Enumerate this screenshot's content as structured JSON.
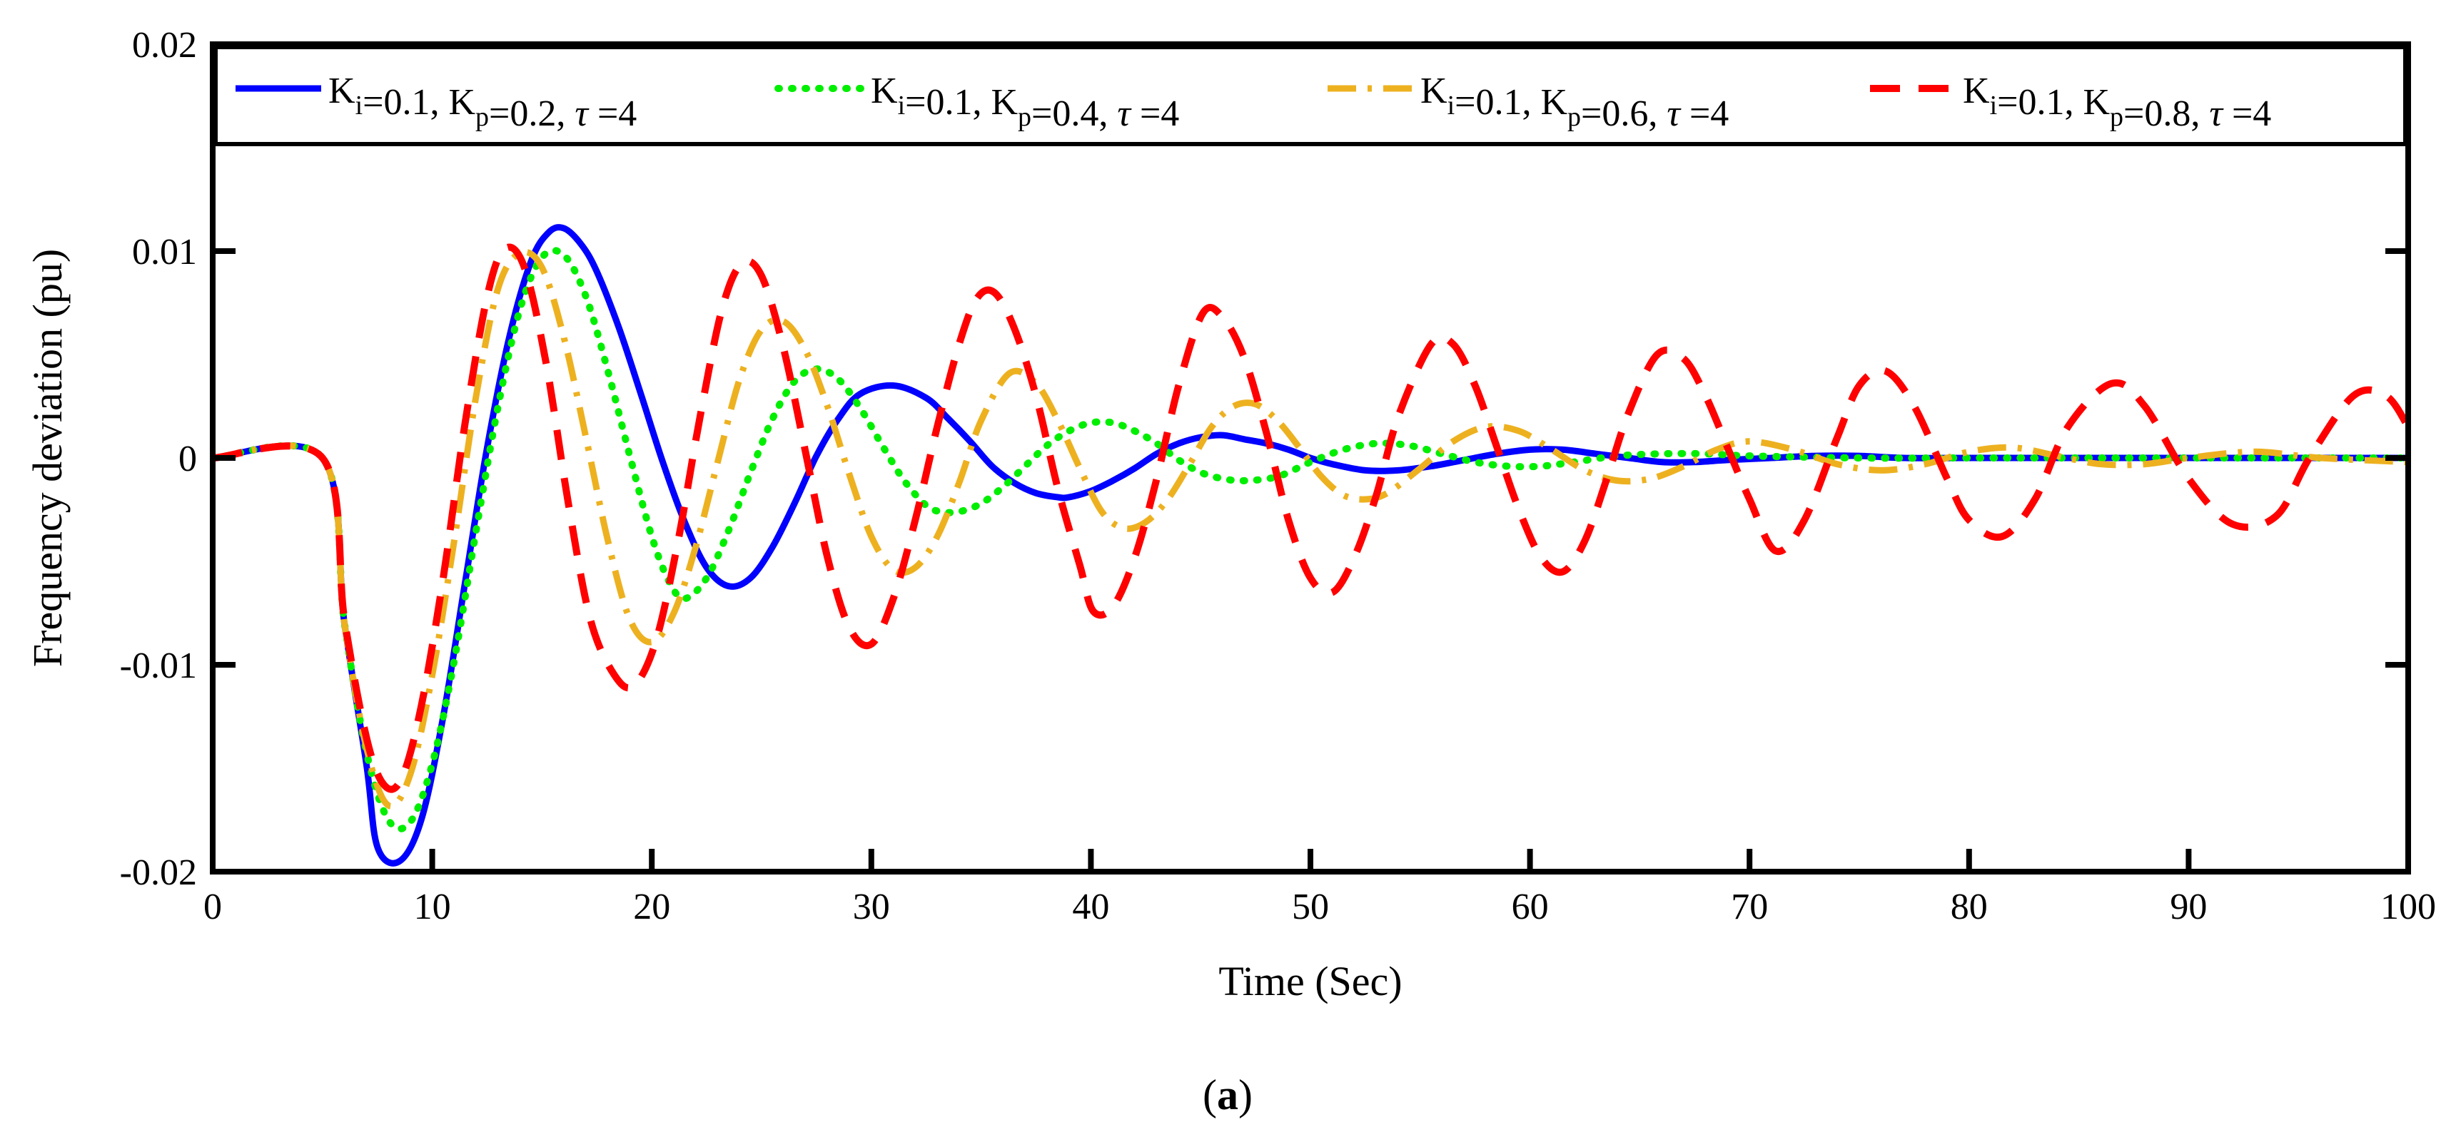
{
  "chart_data": {
    "type": "line",
    "title": "",
    "xlabel": "Time (Sec)",
    "ylabel": "Frequency deviation (pu)",
    "xlim": [
      0,
      100
    ],
    "ylim": [
      -0.02,
      0.02
    ],
    "xticks": [
      0,
      10,
      20,
      30,
      40,
      50,
      60,
      70,
      80,
      90,
      100
    ],
    "xtick_labels": [
      "0",
      "10",
      "20",
      "30",
      "40",
      "50",
      "60",
      "70",
      "80",
      "90",
      "100"
    ],
    "yticks": [
      -0.02,
      -0.01,
      0,
      0.01,
      0.02
    ],
    "ytick_labels": [
      "-0.02",
      "-0.01",
      "0",
      "0.01",
      "0.02"
    ],
    "grid": false,
    "legend_position": "top",
    "caption_open": "(",
    "caption_letter": "a",
    "caption_close": ")",
    "series": [
      {
        "name": "Ki=0.1, Kp=0.2, τ=4",
        "legend": {
          "k1": "K",
          "s1": "i",
          "t1": "=0.1, ",
          "k2": "K",
          "s2": "p",
          "t2": "=0.2, ",
          "tau": "τ",
          "t3": " =4"
        },
        "color": "#0000ff",
        "style": "solid",
        "x": [
          0,
          5,
          6,
          7,
          7.5,
          8.5,
          9.5,
          10.5,
          11.5,
          12.5,
          13.5,
          14.5,
          15.3,
          16,
          16.8,
          17.5,
          18.5,
          19.5,
          20.5,
          21.5,
          22.5,
          23.5,
          24.5,
          25.5,
          26.5,
          27.5,
          28.5,
          29.5,
          31,
          32.5,
          33.5,
          34.5,
          35.5,
          36.5,
          37.5,
          38.5,
          39,
          40,
          41,
          42,
          43,
          44,
          45,
          46,
          47,
          48,
          49,
          50,
          51,
          52.5,
          54,
          55.5,
          57,
          58.5,
          60,
          61.5,
          63,
          64.5,
          66,
          67.5,
          69,
          71,
          73,
          75,
          77,
          80,
          85,
          90,
          95,
          100
        ],
        "y": [
          0,
          0,
          -0.008,
          -0.0148,
          -0.0188,
          -0.0195,
          -0.0175,
          -0.0125,
          -0.006,
          0.0005,
          0.0058,
          0.0095,
          0.0109,
          0.0111,
          0.0103,
          0.009,
          0.0063,
          0.0031,
          -0.0002,
          -0.0031,
          -0.0053,
          -0.0062,
          -0.0058,
          -0.0043,
          -0.0022,
          0.0001,
          0.0019,
          0.0031,
          0.0035,
          0.0029,
          0.0019,
          0.0008,
          -0.0004,
          -0.0012,
          -0.0017,
          -0.0019,
          -0.0019,
          -0.0016,
          -0.0011,
          -0.0005,
          0.0002,
          0.0007,
          0.001,
          0.0011,
          0.0009,
          0.0007,
          0.0004,
          0,
          -0.0003,
          -0.0006,
          -0.0006,
          -0.0004,
          -0.0001,
          0.0002,
          0.0004,
          0.0004,
          0.0002,
          0,
          -0.0002,
          -0.0002,
          -0.0001,
          0,
          0.0001,
          0.0001,
          0,
          0,
          0,
          0,
          0,
          0
        ]
      },
      {
        "name": "Ki=0.1, Kp=0.4, τ=4",
        "legend": {
          "k1": "K",
          "s1": "i",
          "t1": "=0.1, ",
          "k2": "K",
          "s2": "p",
          "t2": "=0.4, ",
          "tau": "τ",
          "t3": " =4"
        },
        "color": "#00ee00",
        "style": "dotted",
        "x": [
          0,
          5,
          6,
          7,
          8,
          9,
          10,
          11,
          12,
          13,
          14,
          15,
          16,
          17,
          18,
          19,
          20,
          20.8,
          21.5,
          22.5,
          23.5,
          24.5,
          25.5,
          26.5,
          27.5,
          28.5,
          29.5,
          30.5,
          31.5,
          32.5,
          33.2,
          34,
          35,
          36,
          37,
          38,
          39,
          40,
          41,
          42,
          43,
          44,
          45,
          46,
          47,
          48.5,
          50,
          51.5,
          53,
          54.5,
          56,
          57.5,
          59,
          60.5,
          62,
          64,
          66,
          68,
          70,
          75,
          80,
          85,
          90,
          95,
          100
        ],
        "y": [
          0,
          0,
          -0.008,
          -0.0142,
          -0.0175,
          -0.0176,
          -0.0148,
          -0.0098,
          -0.0035,
          0.0025,
          0.0072,
          0.0097,
          0.0098,
          0.0078,
          0.0042,
          0.0001,
          -0.0038,
          -0.006,
          -0.0068,
          -0.0058,
          -0.0035,
          -0.0007,
          0.0019,
          0.0037,
          0.0043,
          0.0038,
          0.0024,
          0.0006,
          -0.0011,
          -0.0023,
          -0.0026,
          -0.0026,
          -0.0022,
          -0.0014,
          -0.0004,
          0.0006,
          0.0013,
          0.0017,
          0.0017,
          0.0013,
          0.0007,
          -0.0001,
          -0.0007,
          -0.001,
          -0.0011,
          -0.0009,
          -0.0002,
          0.0004,
          0.0007,
          0.0006,
          0.0002,
          -0.0002,
          -0.0004,
          -0.0004,
          -0.0002,
          0.0001,
          0.0002,
          0.0002,
          0.0001,
          0,
          0,
          0,
          0,
          0,
          0
        ]
      },
      {
        "name": "Ki=0.1, Kp=0.6, τ=4",
        "legend": {
          "k1": "K",
          "s1": "i",
          "t1": "=0.1, ",
          "k2": "K",
          "s2": "p",
          "t2": "=0.6, ",
          "tau": "τ",
          "t3": " =4"
        },
        "color": "#edb120",
        "style": "dashdot",
        "x": [
          0,
          5,
          6,
          7,
          8,
          9,
          10,
          11,
          12,
          13,
          14,
          15,
          16,
          17,
          18,
          19,
          20,
          21,
          22,
          23,
          24,
          25,
          26,
          27,
          28,
          29,
          30,
          31,
          32,
          33,
          34,
          35,
          36.3,
          37.5,
          38.5,
          39.5,
          40.5,
          41.5,
          42.5,
          43.5,
          44.5,
          45.5,
          46.5,
          47.5,
          48.5,
          49.5,
          50.5,
          51.5,
          52.5,
          53.5,
          55,
          56.5,
          58,
          59.5,
          61,
          62.5,
          64,
          65.5,
          67,
          68.5,
          70,
          72,
          74,
          76,
          78,
          80,
          82,
          84,
          86,
          88,
          90,
          93,
          96,
          100
        ],
        "y": [
          0,
          0,
          -0.008,
          -0.014,
          -0.0168,
          -0.0153,
          -0.0105,
          -0.004,
          0.003,
          0.0082,
          0.0099,
          0.0092,
          0.0058,
          0.001,
          -0.004,
          -0.0078,
          -0.0089,
          -0.0075,
          -0.0043,
          -0.0002,
          0.0038,
          0.0062,
          0.0066,
          0.0052,
          0.0025,
          -0.0008,
          -0.0038,
          -0.0054,
          -0.0053,
          -0.0038,
          -0.0012,
          0.0018,
          0.0041,
          0.0036,
          0.0018,
          -0.0005,
          -0.0026,
          -0.0034,
          -0.0031,
          -0.002,
          -0.0003,
          0.0015,
          0.0025,
          0.0026,
          0.0018,
          0.0005,
          -0.0009,
          -0.0018,
          -0.002,
          -0.0017,
          -0.0005,
          0.0008,
          0.0015,
          0.0013,
          0.0004,
          -0.0006,
          -0.0011,
          -0.001,
          -0.0004,
          0.0004,
          0.0008,
          0.0004,
          -0.0003,
          -0.0006,
          -0.0003,
          0.0003,
          0.0005,
          0.0001,
          -0.0003,
          -0.0003,
          0,
          0.0003,
          0,
          -0.0002
        ]
      },
      {
        "name": "Ki=0.1, Kp=0.8, τ=4",
        "legend": {
          "k1": "K",
          "s1": "i",
          "t1": "=0.1, ",
          "k2": "K",
          "s2": "p",
          "t2": "=0.8, ",
          "tau": "τ",
          "t3": " =4"
        },
        "color": "#ff0000",
        "style": "dashed",
        "x": [
          0,
          5,
          6,
          7,
          7.8,
          8.6,
          9.5,
          10.5,
          11.5,
          12.5,
          13.3,
          14.2,
          15.2,
          16.2,
          17.2,
          18.3,
          19.2,
          20.2,
          21.2,
          22.2,
          23.2,
          24.1,
          25,
          26,
          27,
          28,
          29,
          30,
          31,
          32,
          33,
          34,
          34.8,
          35.6,
          36.5,
          37.5,
          38.5,
          39.5,
          40.1,
          41,
          42,
          43,
          44,
          45.1,
          46,
          47,
          48,
          49,
          50,
          51,
          52,
          53,
          54,
          55.5,
          56.5,
          57.5,
          58.5,
          59.5,
          60.5,
          61.5,
          62.5,
          63.5,
          64.5,
          65.8,
          67,
          68,
          69,
          70,
          71.2,
          72.5,
          74,
          75,
          76.2,
          77.5,
          79,
          80,
          81.5,
          83,
          84.5,
          86.5,
          88,
          90,
          92,
          94,
          95.5,
          97.5,
          99,
          100
        ],
        "y": [
          0,
          0,
          -0.0078,
          -0.0135,
          -0.0158,
          -0.0155,
          -0.012,
          -0.0058,
          0.0017,
          0.0078,
          0.0101,
          0.0092,
          0.0045,
          -0.0022,
          -0.0078,
          -0.0105,
          -0.011,
          -0.0088,
          -0.004,
          0.002,
          0.0072,
          0.0094,
          0.0088,
          0.0053,
          0.0003,
          -0.0048,
          -0.0082,
          -0.009,
          -0.0068,
          -0.003,
          0.0015,
          0.0055,
          0.0077,
          0.008,
          0.0063,
          0.003,
          -0.0015,
          -0.0052,
          -0.0074,
          -0.0072,
          -0.0048,
          -0.001,
          0.0035,
          0.007,
          0.0068,
          0.0048,
          0.0012,
          -0.003,
          -0.0058,
          -0.0065,
          -0.0048,
          -0.0018,
          0.002,
          0.0055,
          0.0055,
          0.0035,
          0.0005,
          -0.0025,
          -0.0048,
          -0.0055,
          -0.004,
          -0.001,
          0.0022,
          0.005,
          0.0048,
          0.003,
          0.0005,
          -0.002,
          -0.0045,
          -0.003,
          0.001,
          0.0035,
          0.0042,
          0.0025,
          -0.001,
          -0.003,
          -0.0038,
          -0.002,
          0.0015,
          0.0036,
          0.0025,
          -0.001,
          -0.0032,
          -0.0028,
          0,
          0.003,
          0.003,
          0.0015
        ]
      }
    ]
  }
}
